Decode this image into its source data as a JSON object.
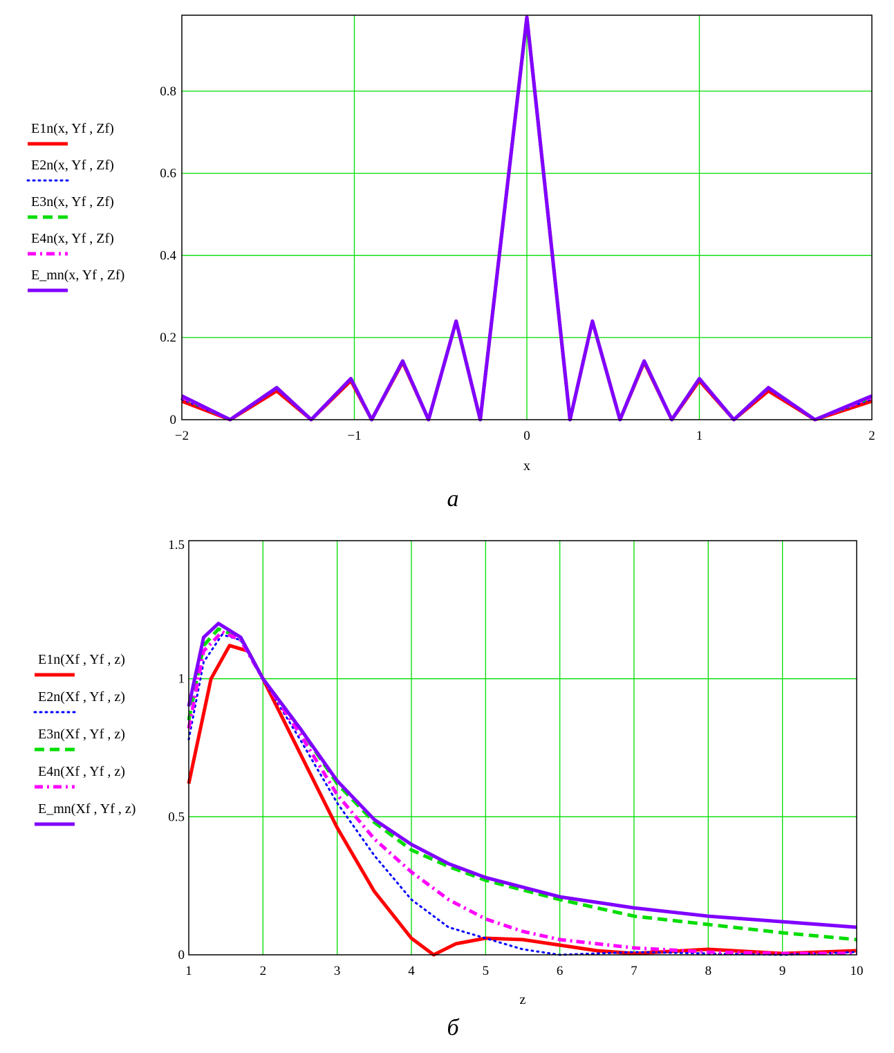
{
  "chart_data": [
    {
      "type": "line",
      "caption": "a",
      "xlabel": "x",
      "xlim": [
        -2,
        2
      ],
      "ylim": [
        0,
        0.985
      ],
      "x_ticks": [
        "−2",
        "−1",
        "0",
        "1",
        "2"
      ],
      "y_ticks": [
        "0",
        "0.2",
        "0.4",
        "0.6",
        "0.8"
      ],
      "grid": true,
      "legend_position": "left",
      "series": [
        {
          "name": "E1n(x, Yf , Zf)",
          "color": "#ff0000",
          "style": "solid",
          "x": [
            -2,
            -1.72,
            -1.45,
            -1.25,
            -1.02,
            -0.9,
            -0.72,
            -0.57,
            -0.41,
            -0.27,
            0,
            0.25,
            0.38,
            0.54,
            0.68,
            0.84,
            1.0,
            1.2,
            1.4,
            1.67,
            2
          ],
          "y": [
            0.045,
            0.0,
            0.07,
            0.0,
            0.095,
            0.0,
            0.14,
            0.0,
            0.24,
            0.0,
            0.98,
            0.0,
            0.24,
            0.0,
            0.14,
            0.0,
            0.095,
            0.0,
            0.07,
            0.0,
            0.045
          ]
        },
        {
          "name": "E2n(x, Yf , Zf)",
          "color": "#0000ff",
          "style": "dotted",
          "x": [
            -2,
            -1.72,
            -1.45,
            -1.25,
            -1.02,
            -0.9,
            -0.72,
            -0.57,
            -0.41,
            -0.27,
            0,
            0.25,
            0.38,
            0.54,
            0.68,
            0.84,
            1.0,
            1.2,
            1.4,
            1.67,
            2
          ],
          "y": [
            0.05,
            0.0,
            0.075,
            0.0,
            0.098,
            0.0,
            0.142,
            0.0,
            0.24,
            0.0,
            0.98,
            0.0,
            0.24,
            0.0,
            0.142,
            0.0,
            0.098,
            0.0,
            0.075,
            0.0,
            0.05
          ]
        },
        {
          "name": "E3n(x, Yf , Zf)",
          "color": "#00dd00",
          "style": "dashed",
          "x": [
            -2,
            -1.72,
            -1.45,
            -1.25,
            -1.02,
            -0.9,
            -0.72,
            -0.57,
            -0.41,
            -0.27,
            0,
            0.25,
            0.38,
            0.54,
            0.68,
            0.84,
            1.0,
            1.2,
            1.4,
            1.67,
            2
          ],
          "y": [
            0.055,
            0.0,
            0.078,
            0.0,
            0.1,
            0.0,
            0.143,
            0.0,
            0.24,
            0.0,
            0.98,
            0.0,
            0.24,
            0.0,
            0.143,
            0.0,
            0.1,
            0.0,
            0.078,
            0.0,
            0.055
          ]
        },
        {
          "name": "E4n(x, Yf , Zf)",
          "color": "#ff00ff",
          "style": "dashdot",
          "x": [
            -2,
            -1.72,
            -1.45,
            -1.25,
            -1.02,
            -0.9,
            -0.72,
            -0.57,
            -0.41,
            -0.27,
            0,
            0.25,
            0.38,
            0.54,
            0.68,
            0.84,
            1.0,
            1.2,
            1.4,
            1.67,
            2
          ],
          "y": [
            0.055,
            0.0,
            0.078,
            0.0,
            0.1,
            0.0,
            0.143,
            0.0,
            0.24,
            0.0,
            0.98,
            0.0,
            0.24,
            0.0,
            0.143,
            0.0,
            0.1,
            0.0,
            0.078,
            0.0,
            0.055
          ]
        },
        {
          "name": "E_mn(x, Yf , Zf)",
          "color": "#8000ff",
          "style": "solid",
          "x": [
            -2,
            -1.72,
            -1.45,
            -1.25,
            -1.02,
            -0.9,
            -0.72,
            -0.57,
            -0.41,
            -0.27,
            0,
            0.25,
            0.38,
            0.54,
            0.68,
            0.84,
            1.0,
            1.2,
            1.4,
            1.67,
            2
          ],
          "y": [
            0.058,
            0.0,
            0.078,
            0.0,
            0.1,
            0.0,
            0.143,
            0.0,
            0.24,
            0.0,
            0.98,
            0.0,
            0.24,
            0.0,
            0.143,
            0.0,
            0.1,
            0.0,
            0.078,
            0.0,
            0.058
          ]
        }
      ]
    },
    {
      "type": "line",
      "caption": "б",
      "xlabel": "z",
      "xlim": [
        1,
        10
      ],
      "ylim": [
        0,
        1.5
      ],
      "x_ticks": [
        "1",
        "2",
        "3",
        "4",
        "5",
        "6",
        "7",
        "8",
        "9",
        "10"
      ],
      "y_ticks": [
        "0",
        "0.5",
        "1",
        "1.5"
      ],
      "grid": true,
      "legend_position": "left",
      "series": [
        {
          "name": "E1n(Xf , Yf , z)",
          "color": "#ff0000",
          "style": "solid",
          "x": [
            1,
            1.3,
            1.55,
            1.8,
            2,
            2.5,
            3,
            3.5,
            4,
            4.3,
            4.6,
            5,
            5.5,
            6,
            6.5,
            7,
            8,
            9,
            10
          ],
          "y": [
            0.62,
            1.0,
            1.12,
            1.1,
            1.0,
            0.73,
            0.46,
            0.23,
            0.06,
            0.0,
            0.04,
            0.06,
            0.055,
            0.035,
            0.015,
            0.005,
            0.02,
            0.005,
            0.015
          ]
        },
        {
          "name": "E2n(Xf , Yf , z)",
          "color": "#0000ff",
          "style": "dotted",
          "x": [
            1,
            1.2,
            1.45,
            1.7,
            2,
            2.5,
            3,
            3.5,
            4,
            4.5,
            5,
            5.5,
            6,
            6.5,
            7,
            8,
            9,
            10
          ],
          "y": [
            0.78,
            1.06,
            1.16,
            1.14,
            1.0,
            0.78,
            0.55,
            0.36,
            0.2,
            0.1,
            0.06,
            0.02,
            0.0,
            0.005,
            0.01,
            0.005,
            0.0,
            0.01
          ]
        },
        {
          "name": "E3n(Xf , Yf , z)",
          "color": "#00dd00",
          "style": "dashed",
          "x": [
            1,
            1.2,
            1.4,
            1.7,
            2,
            2.5,
            3,
            3.5,
            4,
            4.5,
            5,
            6,
            7,
            8,
            9,
            10
          ],
          "y": [
            0.85,
            1.12,
            1.18,
            1.15,
            1.0,
            0.82,
            0.62,
            0.48,
            0.38,
            0.32,
            0.27,
            0.2,
            0.14,
            0.11,
            0.08,
            0.055
          ]
        },
        {
          "name": "E4n(Xf , Yf , z)",
          "color": "#ff00ff",
          "style": "dashdot",
          "x": [
            1,
            1.2,
            1.45,
            1.7,
            2,
            2.5,
            3,
            3.5,
            4,
            4.5,
            5,
            5.5,
            6,
            7,
            8,
            9,
            10
          ],
          "y": [
            0.82,
            1.1,
            1.17,
            1.14,
            1.0,
            0.8,
            0.58,
            0.42,
            0.3,
            0.2,
            0.13,
            0.085,
            0.055,
            0.025,
            0.01,
            0.005,
            0.005
          ]
        },
        {
          "name": "E_mn(Xf , Yf , z)",
          "color": "#8000ff",
          "style": "solid",
          "x": [
            1,
            1.2,
            1.4,
            1.7,
            2,
            2.5,
            3,
            3.5,
            4,
            4.5,
            5,
            6,
            7,
            8,
            9,
            10
          ],
          "y": [
            0.9,
            1.15,
            1.2,
            1.15,
            1.0,
            0.82,
            0.63,
            0.49,
            0.4,
            0.33,
            0.28,
            0.21,
            0.17,
            0.14,
            0.12,
            0.1
          ]
        }
      ]
    }
  ]
}
